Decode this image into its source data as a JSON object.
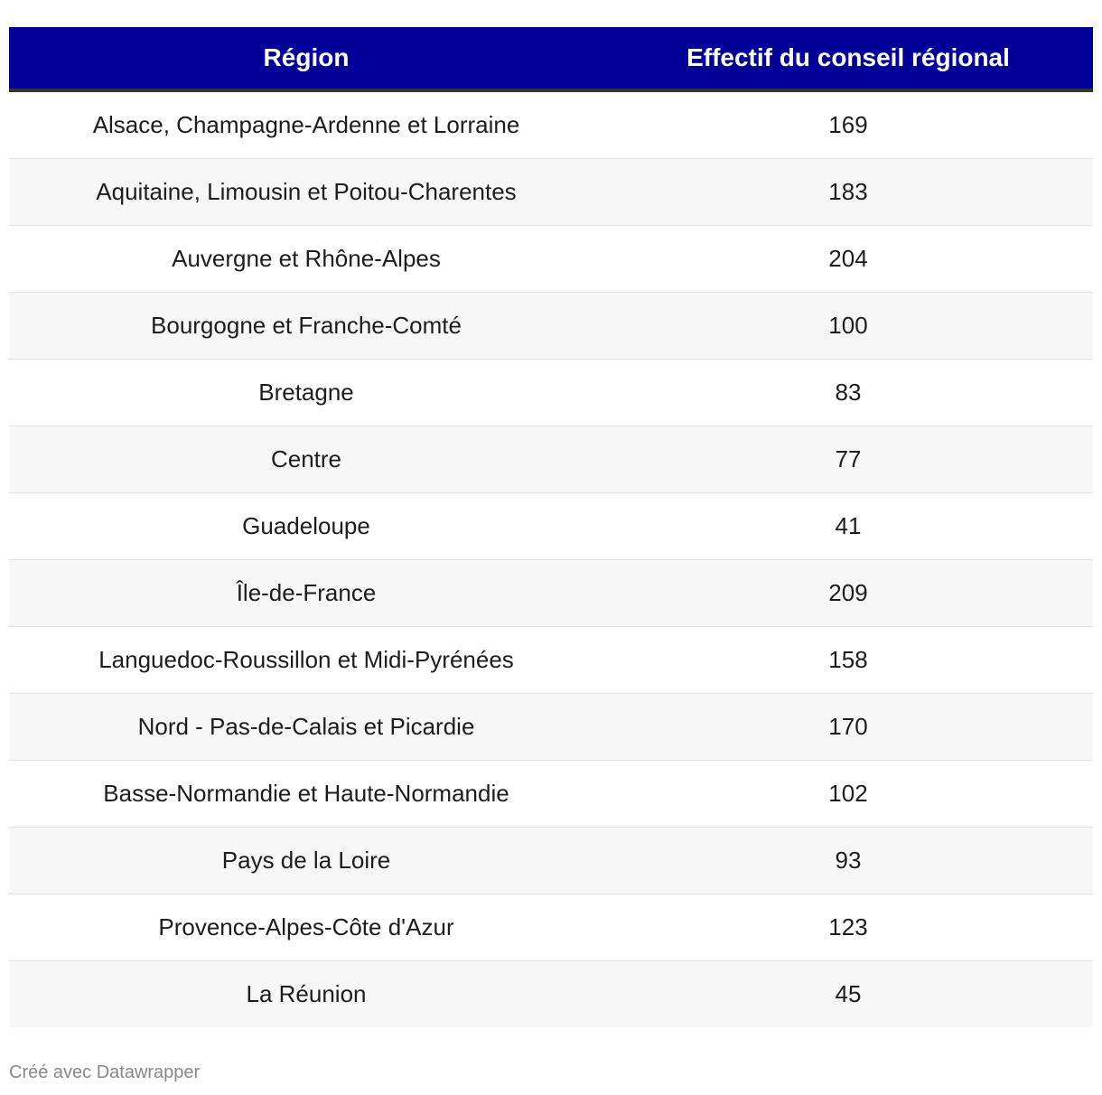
{
  "chart_data": {
    "type": "table",
    "columns": [
      "Région",
      "Effectif du conseil régional"
    ],
    "rows": [
      {
        "region": "Alsace, Champagne-Ardenne et Lorraine",
        "value": 169
      },
      {
        "region": "Aquitaine, Limousin et Poitou-Charentes",
        "value": 183
      },
      {
        "region": "Auvergne et Rhône-Alpes",
        "value": 204
      },
      {
        "region": "Bourgogne et Franche-Comté",
        "value": 100
      },
      {
        "region": "Bretagne",
        "value": 83
      },
      {
        "region": "Centre",
        "value": 77
      },
      {
        "region": "Guadeloupe",
        "value": 41
      },
      {
        "region": "Île-de-France",
        "value": 209
      },
      {
        "region": "Languedoc-Roussillon et Midi-Pyrénées",
        "value": 158
      },
      {
        "region": "Nord - Pas-de-Calais et Picardie",
        "value": 170
      },
      {
        "region": "Basse-Normandie et Haute-Normandie",
        "value": 102
      },
      {
        "region": "Pays de la Loire",
        "value": 93
      },
      {
        "region": "Provence-Alpes-Côte d'Azur",
        "value": 123
      },
      {
        "region": "La Réunion",
        "value": 45
      }
    ]
  },
  "footer": {
    "credit": "Créé avec Datawrapper"
  },
  "colors": {
    "header_bg": "#000099",
    "header_text": "#ffffff",
    "stripe": "#f7f7f7"
  }
}
